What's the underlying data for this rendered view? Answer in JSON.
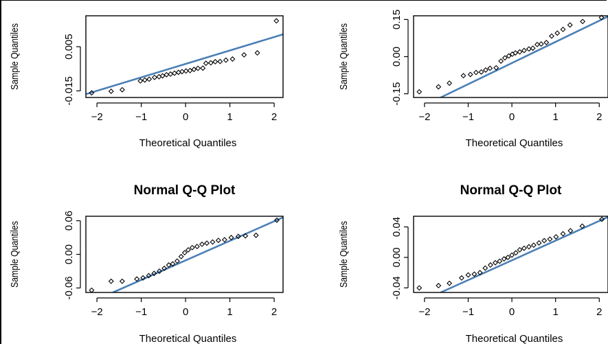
{
  "colors": {
    "line": "#4a7fb5",
    "points": "#000000",
    "background": "#ffffff"
  },
  "chart_data": [
    {
      "type": "scatter",
      "title": "",
      "xlabel": "Theoretical Quantiles",
      "ylabel": "Sample Quantiles",
      "xticks": [
        -2,
        -1,
        0,
        1,
        2
      ],
      "yticks": [
        -0.015,
        0.005
      ],
      "ytick_labels": [
        "-0.015",
        "0.005"
      ],
      "xlim": [
        -2.25,
        2.2
      ],
      "ylim": [
        -0.018,
        0.019
      ],
      "reference_line": [
        [
          -2.25,
          -0.0165
        ],
        [
          2.2,
          0.0106
        ]
      ],
      "points": [
        [
          -2.12,
          -0.0159
        ],
        [
          -1.68,
          -0.0152
        ],
        [
          -1.43,
          -0.0145
        ],
        [
          -1.02,
          -0.0105
        ],
        [
          -0.92,
          -0.0101
        ],
        [
          -0.82,
          -0.0097
        ],
        [
          -0.7,
          -0.0089
        ],
        [
          -0.6,
          -0.0086
        ],
        [
          -0.52,
          -0.0082
        ],
        [
          -0.43,
          -0.0077
        ],
        [
          -0.34,
          -0.0074
        ],
        [
          -0.25,
          -0.007
        ],
        [
          -0.16,
          -0.0066
        ],
        [
          -0.08,
          -0.0063
        ],
        [
          0.01,
          -0.006
        ],
        [
          0.1,
          -0.0058
        ],
        [
          0.19,
          -0.0053
        ],
        [
          0.28,
          -0.0048
        ],
        [
          0.39,
          -0.0047
        ],
        [
          0.46,
          -0.0025
        ],
        [
          0.57,
          -0.0023
        ],
        [
          0.67,
          -0.0018
        ],
        [
          0.78,
          -0.0017
        ],
        [
          0.91,
          -0.0011
        ],
        [
          1.06,
          -0.0006
        ],
        [
          1.32,
          0.0013
        ],
        [
          1.62,
          0.0022
        ],
        [
          2.05,
          0.0167
        ]
      ]
    },
    {
      "type": "scatter",
      "title": "",
      "xlabel": "Theoretical Quantiles",
      "ylabel": "Sample Quantiles",
      "xticks": [
        -2,
        -1,
        0,
        1,
        2
      ],
      "yticks": [
        -0.15,
        0.0,
        0.15
      ],
      "ytick_labels": [
        "-0.15",
        "0.00",
        "0.15"
      ],
      "xlim": [
        -2.25,
        2.2
      ],
      "ylim": [
        -0.165,
        0.165
      ],
      "reference_line": [
        [
          -1.63,
          -0.165
        ],
        [
          2.2,
          0.162
        ]
      ],
      "points": [
        [
          -2.12,
          -0.142
        ],
        [
          -1.68,
          -0.122
        ],
        [
          -1.43,
          -0.107
        ],
        [
          -1.11,
          -0.077
        ],
        [
          -0.95,
          -0.072
        ],
        [
          -0.82,
          -0.064
        ],
        [
          -0.7,
          -0.062
        ],
        [
          -0.6,
          -0.054
        ],
        [
          -0.5,
          -0.047
        ],
        [
          -0.36,
          -0.045
        ],
        [
          -0.25,
          -0.018
        ],
        [
          -0.16,
          -0.005
        ],
        [
          -0.07,
          0.003
        ],
        [
          0.01,
          0.01
        ],
        [
          0.08,
          0.015
        ],
        [
          0.18,
          0.019
        ],
        [
          0.28,
          0.025
        ],
        [
          0.39,
          0.031
        ],
        [
          0.48,
          0.034
        ],
        [
          0.58,
          0.049
        ],
        [
          0.67,
          0.051
        ],
        [
          0.79,
          0.057
        ],
        [
          0.91,
          0.083
        ],
        [
          1.04,
          0.095
        ],
        [
          1.17,
          0.11
        ],
        [
          1.33,
          0.128
        ],
        [
          1.62,
          0.142
        ],
        [
          2.05,
          0.158
        ]
      ]
    },
    {
      "type": "scatter",
      "title": "Normal Q-Q Plot",
      "xlabel": "Theoretical Quantiles",
      "ylabel": "Sample Quantiles",
      "xticks": [
        -2,
        -1,
        0,
        1,
        2
      ],
      "yticks": [
        -0.06,
        0.0,
        0.06
      ],
      "ytick_labels": [
        "-0.06",
        "0.00",
        "0.06"
      ],
      "xlim": [
        -2.25,
        2.2
      ],
      "ylim": [
        -0.068,
        0.068
      ],
      "reference_line": [
        [
          -1.64,
          -0.068
        ],
        [
          2.2,
          0.066
        ]
      ],
      "points": [
        [
          -2.12,
          -0.064
        ],
        [
          -1.68,
          -0.048
        ],
        [
          -1.43,
          -0.048
        ],
        [
          -1.1,
          -0.044
        ],
        [
          -0.96,
          -0.042
        ],
        [
          -0.83,
          -0.038
        ],
        [
          -0.71,
          -0.034
        ],
        [
          -0.59,
          -0.03
        ],
        [
          -0.48,
          -0.025
        ],
        [
          -0.38,
          -0.019
        ],
        [
          -0.29,
          -0.017
        ],
        [
          -0.19,
          -0.012
        ],
        [
          -0.1,
          -0.004
        ],
        [
          -0.02,
          0.003
        ],
        [
          0.06,
          0.008
        ],
        [
          0.15,
          0.012
        ],
        [
          0.26,
          0.014
        ],
        [
          0.37,
          0.018
        ],
        [
          0.48,
          0.02
        ],
        [
          0.61,
          0.022
        ],
        [
          0.74,
          0.025
        ],
        [
          0.88,
          0.026
        ],
        [
          1.03,
          0.03
        ],
        [
          1.19,
          0.032
        ],
        [
          1.35,
          0.033
        ],
        [
          1.59,
          0.034
        ],
        [
          2.06,
          0.061
        ]
      ]
    },
    {
      "type": "scatter",
      "title": "Normal Q-Q Plot",
      "xlabel": "Theoretical Quantiles",
      "ylabel": "Sample Quantiles",
      "xticks": [
        -2,
        -1,
        0,
        1,
        2
      ],
      "yticks": [
        -0.04,
        0.0,
        0.04
      ],
      "ytick_labels": [
        "-0.04",
        "0.00",
        "0.04"
      ],
      "xlim": [
        -2.25,
        2.2
      ],
      "ylim": [
        -0.046,
        0.054
      ],
      "reference_line": [
        [
          -1.63,
          -0.046
        ],
        [
          2.2,
          0.053
        ]
      ],
      "points": [
        [
          -2.12,
          -0.04
        ],
        [
          -1.68,
          -0.037
        ],
        [
          -1.43,
          -0.034
        ],
        [
          -1.15,
          -0.027
        ],
        [
          -1.0,
          -0.023
        ],
        [
          -0.86,
          -0.022
        ],
        [
          -0.73,
          -0.02
        ],
        [
          -0.61,
          -0.014
        ],
        [
          -0.49,
          -0.01
        ],
        [
          -0.38,
          -0.007
        ],
        [
          -0.28,
          -0.005
        ],
        [
          -0.18,
          -0.002
        ],
        [
          -0.09,
          0.0
        ],
        [
          0.0,
          0.003
        ],
        [
          0.09,
          0.006
        ],
        [
          0.18,
          0.01
        ],
        [
          0.28,
          0.012
        ],
        [
          0.39,
          0.014
        ],
        [
          0.5,
          0.016
        ],
        [
          0.62,
          0.019
        ],
        [
          0.74,
          0.022
        ],
        [
          0.87,
          0.024
        ],
        [
          1.01,
          0.027
        ],
        [
          1.17,
          0.031
        ],
        [
          1.34,
          0.035
        ],
        [
          1.61,
          0.041
        ],
        [
          2.06,
          0.05
        ]
      ]
    }
  ]
}
